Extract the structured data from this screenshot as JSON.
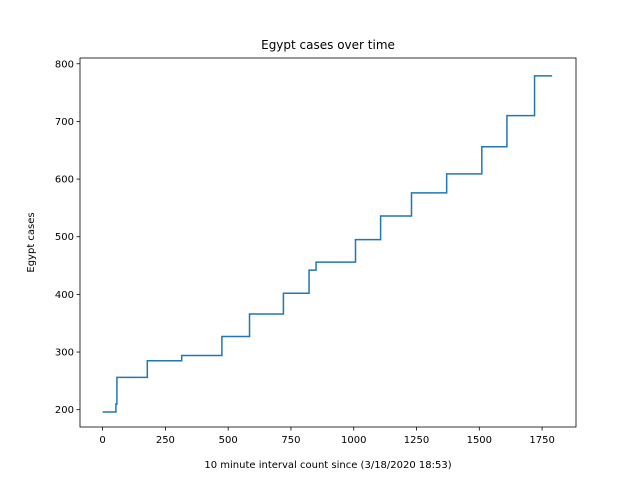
{
  "chart_data": {
    "type": "line",
    "title": "Egypt cases over time",
    "xlabel": "10 minute interval count since (3/18/2020 18:53)",
    "ylabel": "Egypt cases",
    "xlim": [
      -90,
      1885
    ],
    "ylim": [
      170,
      810
    ],
    "xticks": [
      0,
      250,
      500,
      750,
      1000,
      1250,
      1500,
      1750
    ],
    "yticks": [
      200,
      300,
      400,
      500,
      600,
      700,
      800
    ],
    "step": "post",
    "grid": false,
    "legend": "none",
    "series_color": "#1f77b4",
    "series": [
      {
        "x": [
          0,
          50,
          53,
          57,
          178,
          315,
          475,
          585,
          720,
          822,
          850,
          1007,
          1107,
          1230,
          1370,
          1510,
          1610,
          1720,
          1790
        ],
        "values": [
          196,
          196,
          210,
          256,
          285,
          294,
          327,
          366,
          402,
          442,
          456,
          495,
          536,
          576,
          609,
          656,
          710,
          779,
          779
        ]
      }
    ]
  }
}
